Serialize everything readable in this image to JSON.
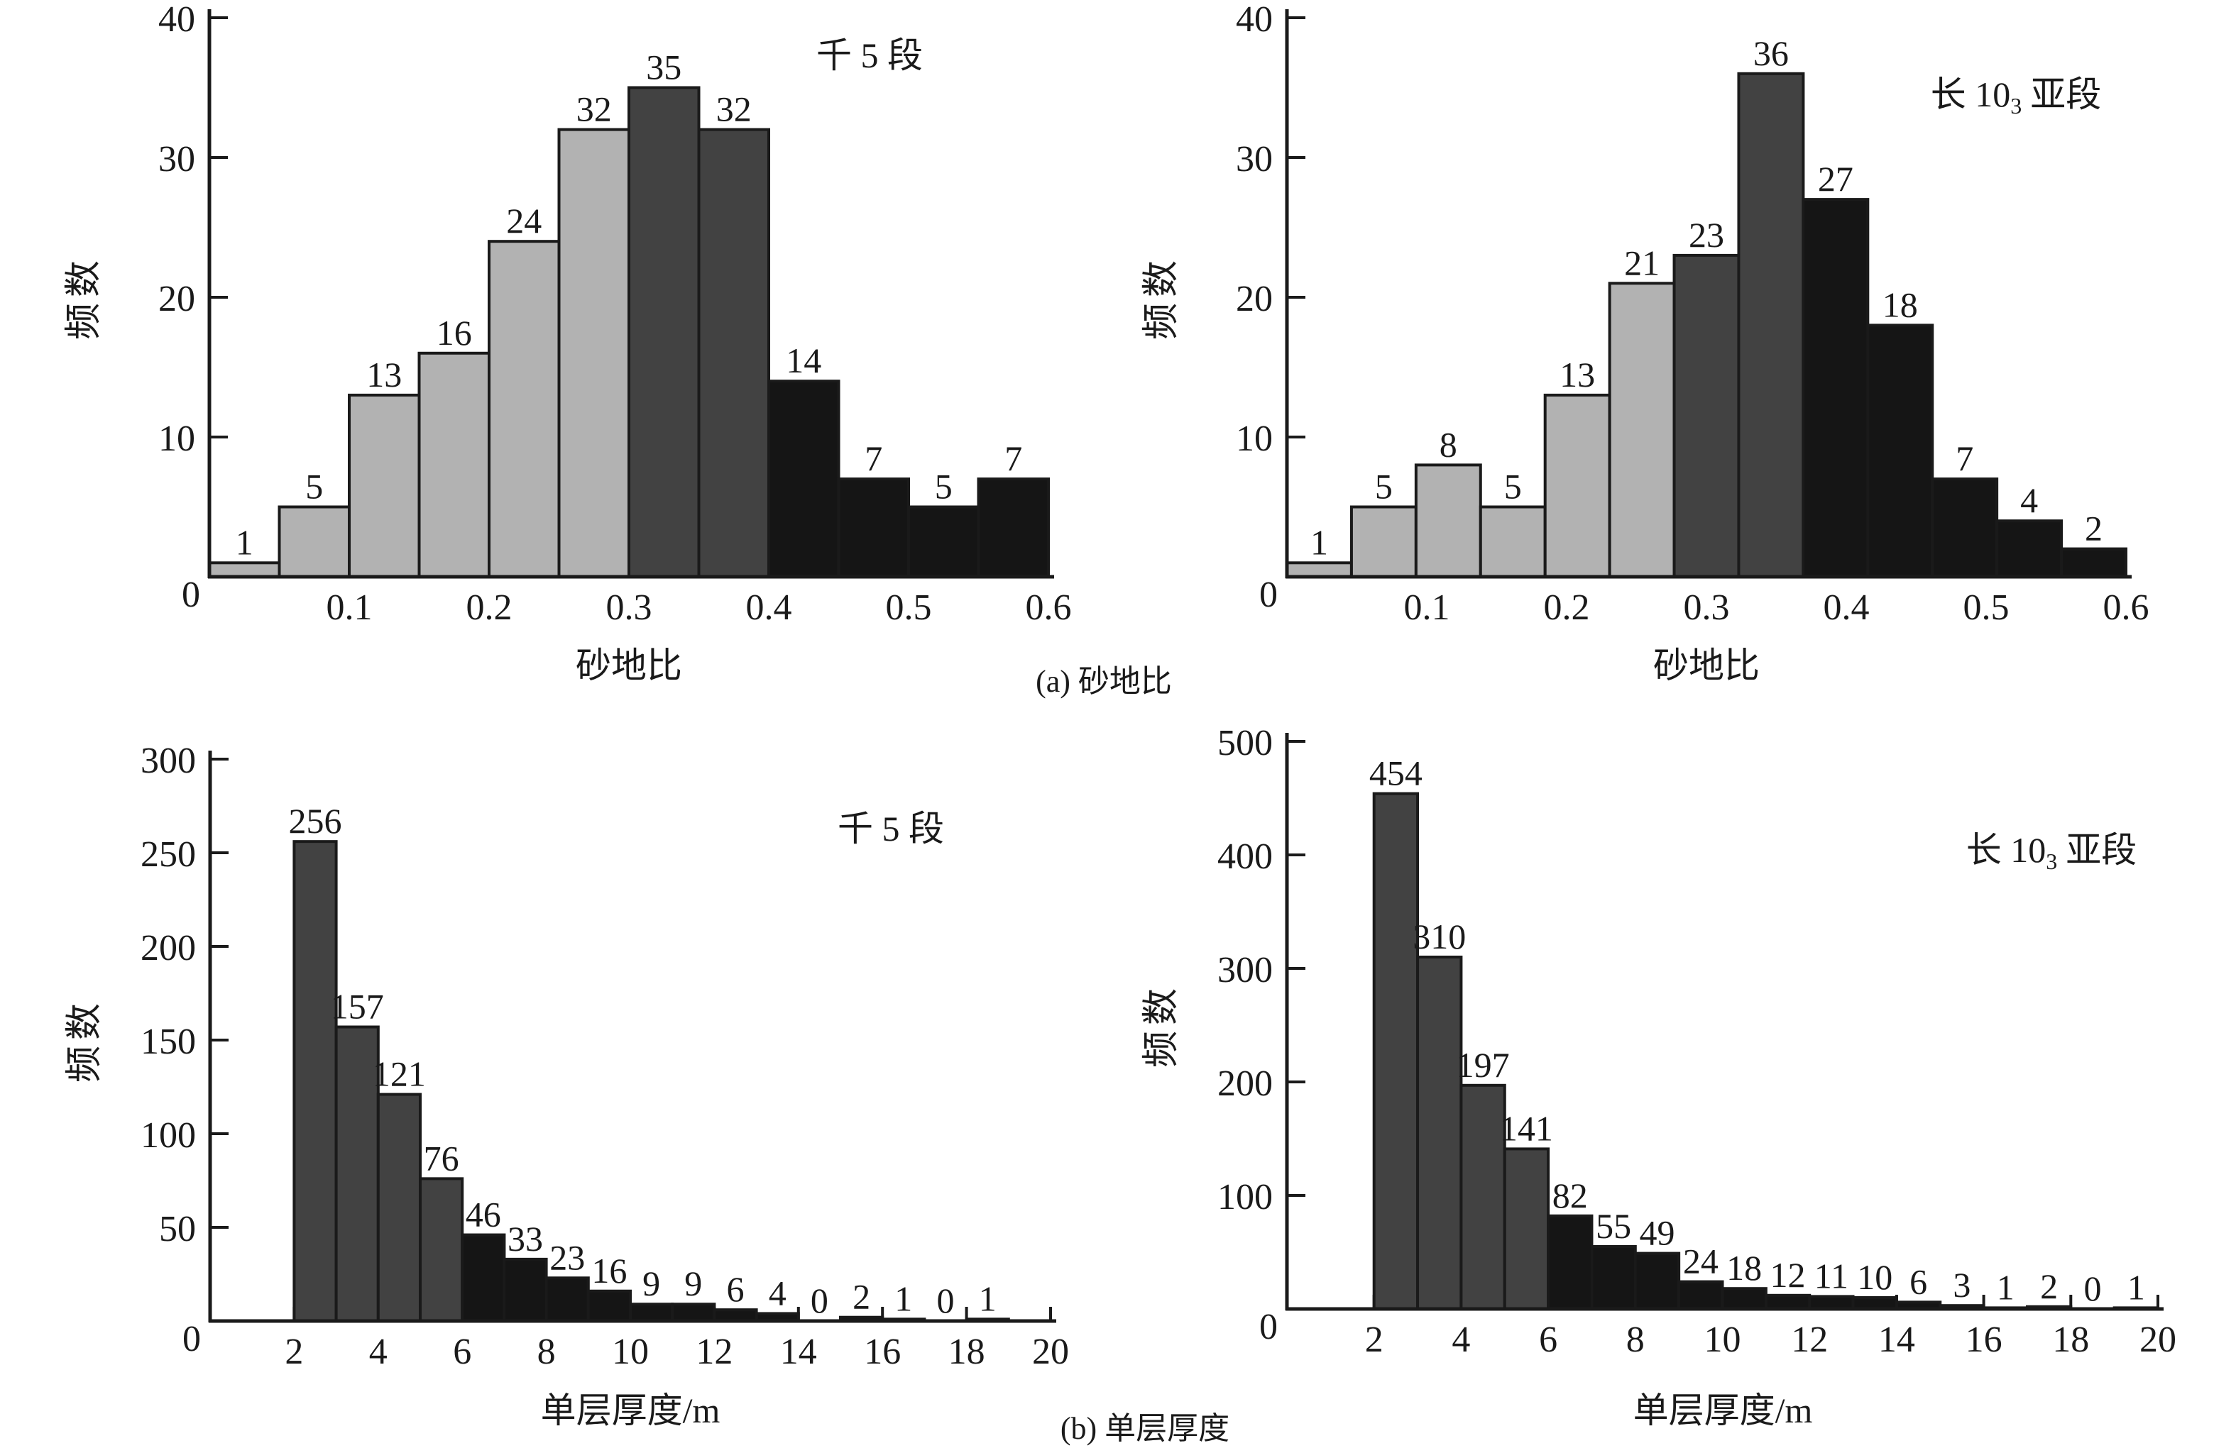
{
  "figure": {
    "background": "#ffffff",
    "axis_color": "#1a1a1a",
    "palette": {
      "light": "#b2b2b2",
      "dark": "#424242",
      "black": "#151515"
    }
  },
  "captions": {
    "a": "(a) 砂地比",
    "b": "(b) 单层厚度"
  },
  "chart_data": [
    {
      "type": "bar",
      "title": {
        "text": "千 5 段",
        "sub": "",
        "suffix": ""
      },
      "xlabel": "砂地比",
      "ylabel": "频数",
      "xlim": [
        0,
        0.6
      ],
      "ylim": [
        0,
        40
      ],
      "xticks": [
        0,
        0.1,
        0.2,
        0.3,
        0.4,
        0.5,
        0.6
      ],
      "xtick_labels": [
        "0",
        "0.1",
        "0.2",
        "0.3",
        "0.4",
        "0.5",
        "0.6"
      ],
      "yticks": [
        0,
        10,
        20,
        30,
        40
      ],
      "grid": false,
      "legend": null,
      "bin_start": 0,
      "bin_width": 0.05,
      "values": [
        1,
        5,
        13,
        16,
        24,
        32,
        35,
        32,
        14,
        7,
        5,
        7
      ],
      "bar_colors": [
        "light",
        "light",
        "light",
        "light",
        "light",
        "light",
        "dark",
        "dark",
        "black",
        "black",
        "black",
        "black"
      ]
    },
    {
      "type": "bar",
      "title": {
        "text": "长 10",
        "sub": "3",
        "suffix": "亚段"
      },
      "xlabel": "砂地比",
      "ylabel": "频数",
      "xlim": [
        0,
        0.6
      ],
      "ylim": [
        0,
        40
      ],
      "xticks": [
        0,
        0.1,
        0.2,
        0.3,
        0.4,
        0.5,
        0.6
      ],
      "xtick_labels": [
        "0",
        "0.1",
        "0.2",
        "0.3",
        "0.4",
        "0.5",
        "0.6"
      ],
      "yticks": [
        0,
        10,
        20,
        30,
        40
      ],
      "grid": false,
      "legend": null,
      "bin_start": 0,
      "bin_width": 0.046153846,
      "values": [
        1,
        5,
        8,
        5,
        13,
        21,
        23,
        36,
        27,
        18,
        7,
        4,
        2
      ],
      "bar_colors": [
        "light",
        "light",
        "light",
        "light",
        "light",
        "light",
        "dark",
        "dark",
        "black",
        "black",
        "black",
        "black",
        "black"
      ]
    },
    {
      "type": "bar",
      "title": {
        "text": "千 5 段",
        "sub": "",
        "suffix": ""
      },
      "xlabel": "单层厚度/m",
      "ylabel": "频数",
      "xlim": [
        0,
        20
      ],
      "ylim": [
        0,
        300
      ],
      "xticks": [
        0,
        2,
        4,
        6,
        8,
        10,
        12,
        14,
        16,
        18,
        20
      ],
      "xtick_labels": [
        "0",
        "2",
        "4",
        "6",
        "8",
        "10",
        "12",
        "14",
        "16",
        "18",
        "20"
      ],
      "yticks": [
        0,
        50,
        100,
        150,
        200,
        250,
        300
      ],
      "grid": false,
      "legend": null,
      "bin_start": 2,
      "bin_width": 1,
      "values": [
        256,
        157,
        121,
        76,
        46,
        33,
        23,
        16,
        9,
        9,
        6,
        4,
        0,
        2,
        1,
        0,
        1
      ],
      "bar_colors": [
        "dark",
        "dark",
        "dark",
        "dark",
        "black",
        "black",
        "black",
        "black",
        "black",
        "black",
        "black",
        "black",
        "black",
        "black",
        "black",
        "black",
        "black"
      ]
    },
    {
      "type": "bar",
      "title": {
        "text": "长 10",
        "sub": "3",
        "suffix": "亚段"
      },
      "xlabel": "单层厚度/m",
      "ylabel": "频数",
      "xlim": [
        0,
        20
      ],
      "ylim": [
        0,
        500
      ],
      "xticks": [
        0,
        2,
        4,
        6,
        8,
        10,
        12,
        14,
        16,
        18,
        20
      ],
      "xtick_labels": [
        "0",
        "2",
        "4",
        "6",
        "8",
        "10",
        "12",
        "14",
        "16",
        "18",
        "20"
      ],
      "yticks": [
        0,
        100,
        200,
        300,
        400,
        500
      ],
      "grid": false,
      "legend": null,
      "bin_start": 2,
      "bin_width": 1,
      "values": [
        454,
        310,
        197,
        141,
        82,
        55,
        49,
        24,
        18,
        12,
        11,
        10,
        6,
        3,
        1,
        2,
        0,
        1
      ],
      "bar_colors": [
        "dark",
        "dark",
        "dark",
        "dark",
        "black",
        "black",
        "black",
        "black",
        "black",
        "black",
        "black",
        "black",
        "black",
        "black",
        "black",
        "black",
        "black",
        "black"
      ]
    }
  ]
}
